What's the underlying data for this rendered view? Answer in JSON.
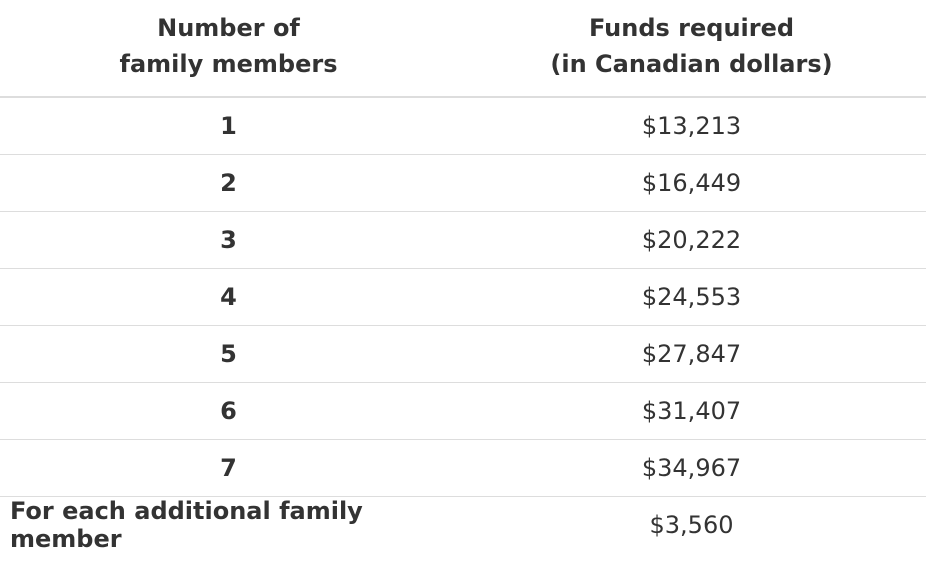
{
  "table": {
    "headers": {
      "col1_line1": "Number of",
      "col1_line2": "family members",
      "col2_line1": "Funds required",
      "col2_line2": "(in Canadian dollars)"
    },
    "rows": [
      {
        "members": "1",
        "funds": "$13,213"
      },
      {
        "members": "2",
        "funds": "$16,449"
      },
      {
        "members": "3",
        "funds": "$20,222"
      },
      {
        "members": "4",
        "funds": "$24,553"
      },
      {
        "members": "5",
        "funds": "$27,847"
      },
      {
        "members": "6",
        "funds": "$31,407"
      },
      {
        "members": "7",
        "funds": "$34,967"
      },
      {
        "members": "For each additional family member",
        "funds": "$3,560"
      }
    ]
  }
}
